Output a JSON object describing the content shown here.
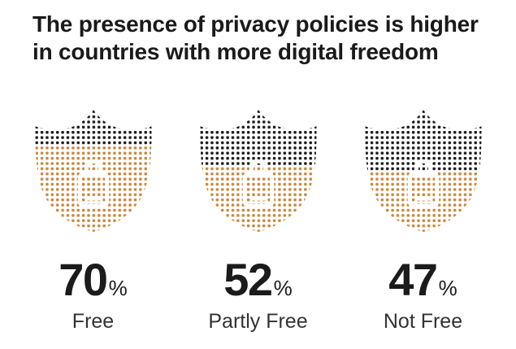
{
  "title": "The presence of privacy policies is higher\nin countries with more digital freedom",
  "chart_data": {
    "type": "pictorial-unit-chart",
    "title": "The presence of privacy policies is higher in countries with more digital freedom",
    "icon": "shield-with-padlock-dot-matrix",
    "categories": [
      "Free",
      "Partly Free",
      "Not Free"
    ],
    "values": [
      70,
      52,
      47
    ],
    "unit": "%",
    "items": [
      {
        "value": "70",
        "unit": "%",
        "label": "Free"
      },
      {
        "value": "52",
        "unit": "%",
        "label": "Partly Free"
      },
      {
        "value": "47",
        "unit": "%",
        "label": "Not Free"
      }
    ],
    "legend_position": "none",
    "grid": false,
    "colors": {
      "filled_dots": "#C9883E",
      "remainder_dots": "#1B1B1B",
      "lock_outline": "#FFFFFF",
      "background": "#FFFFFF"
    }
  }
}
